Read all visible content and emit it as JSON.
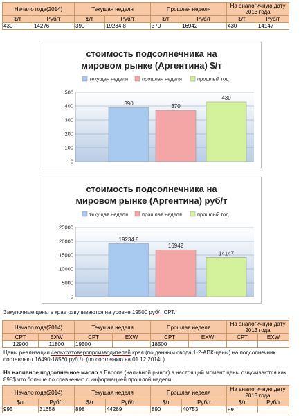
{
  "table1": {
    "headers": [
      "Начало года(2014)",
      "Текущая неделя",
      "Прошлая неделя",
      "На аналогичную дату 2013 года"
    ],
    "units": [
      "$/т",
      "Руб/т",
      "$/т",
      "Руб/т",
      "$/т",
      "Руб/т",
      "$/т",
      "Руб/т"
    ],
    "values": [
      "430",
      "14276",
      "390",
      "19234,8",
      "370",
      "16942",
      "430",
      "14147"
    ]
  },
  "chart1": {
    "title_line1": "стоимость подсолнечника на",
    "title_line2": "мировом рынке (Аргентина) $/т",
    "legend": [
      "текущая неделя",
      "прошлая неделя",
      "прошлый год"
    ],
    "colors": [
      "#a7c8ef",
      "#f4a5a5",
      "#d3f09b"
    ],
    "data_labels": [
      "390",
      "370",
      "430"
    ],
    "yticks": [
      "0",
      "100",
      "200",
      "300",
      "400",
      "500"
    ]
  },
  "chart2": {
    "title_line1": "стоимость подсолнечника на",
    "title_line2": "мировом рынке (Аргентина) руб/т",
    "legend": [
      "текущая неделя",
      "прошлая неделя",
      "прошлый год"
    ],
    "colors": [
      "#a7c8ef",
      "#f4a5a5",
      "#d3f09b"
    ],
    "data_labels": [
      "19234,8",
      "16942",
      "14147"
    ],
    "yticks": [
      "0",
      "5000",
      "10000",
      "15000",
      "20000",
      "25000"
    ]
  },
  "chart_data": [
    {
      "type": "bar",
      "title": "стоимость подсолнечника на мировом рынке (Аргентина) $/т",
      "categories": [
        "текущая неделя",
        "прошлая неделя",
        "прошлый год"
      ],
      "values": [
        390,
        370,
        430
      ],
      "ylim": [
        0,
        500
      ],
      "grid": true,
      "legend": "top"
    },
    {
      "type": "bar",
      "title": "стоимость подсолнечника на мировом рынке (Аргентина) руб/т",
      "categories": [
        "текущая неделя",
        "прошлая неделя",
        "прошлый год"
      ],
      "values": [
        19234.8,
        16942,
        14147
      ],
      "ylim": [
        0,
        25000
      ],
      "grid": true,
      "legend": "top"
    }
  ],
  "para1": {
    "before": "Закупочные цены в крае озвучиваются на уровне 19500 ",
    "unit": "руб/т",
    "after": " СРТ."
  },
  "table2": {
    "headers": [
      "Начало года(2014)",
      "Текущая неделя",
      "Прошлая неделя",
      "На аналогичную дату 2013 года"
    ],
    "units": [
      "СРТ",
      "EXW",
      "СРТ",
      "EXW",
      "СРТ",
      "EXW",
      "СРТ",
      "EXW"
    ],
    "values": [
      "12900",
      "11800",
      "19500",
      "",
      "18500",
      "",
      "",
      ""
    ]
  },
  "para2": {
    "before": "Цены реализации ",
    "link": "сельхозтоваропроизводителей",
    "after": " края (по данным свода 1-2-АПК-цены) на подсолнечник составляют 16490-18560 руб./т. (по состоянию на 01.12.2014г.)"
  },
  "para3": {
    "bold": "На наливное подсолнечное масло",
    "after": " в Европе (наливной рынок) в настоящий момент цены озвучиваются как 898$ что больше по сравнению с информацией прошлой недели."
  },
  "table3": {
    "headers": [
      "Начало года(2014)",
      "Текущая неделя",
      "Прошлая неделя",
      "На аналогичную дату 2013 года"
    ],
    "units": [
      "$/т",
      "Руб/т",
      "$/т",
      "Руб/т",
      "$/т",
      "Руб/т",
      "$/т",
      "Руб/т"
    ],
    "values": [
      "995",
      "31658",
      "898",
      "44289",
      "890",
      "40753",
      "нет",
      ""
    ]
  }
}
